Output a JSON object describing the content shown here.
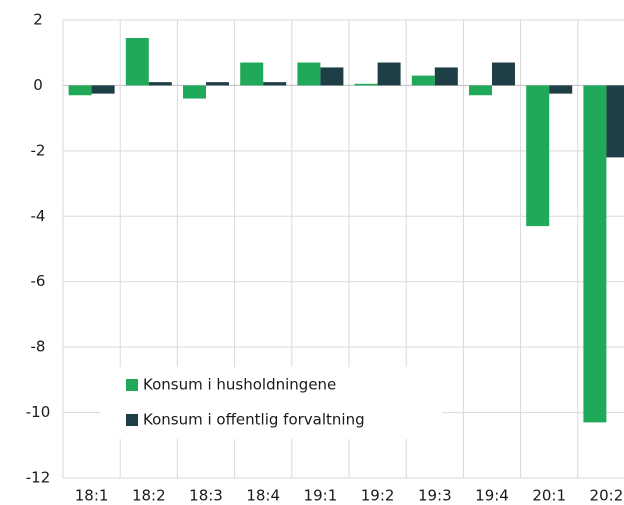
{
  "chart_data": {
    "type": "bar",
    "categories": [
      "18:1",
      "18:2",
      "18:3",
      "18:4",
      "19:1",
      "19:2",
      "19:3",
      "19:4",
      "20:1",
      "20:2"
    ],
    "series": [
      {
        "name": "Konsum i husholdningene",
        "color": "#21a95a",
        "values": [
          -0.3,
          1.45,
          -0.4,
          0.7,
          0.7,
          0.05,
          0.3,
          -0.3,
          -4.3,
          -10.3
        ]
      },
      {
        "name": "Konsum i offentlig forvaltning",
        "color": "#1d3f45",
        "values": [
          -0.25,
          0.1,
          0.1,
          0.1,
          0.55,
          0.7,
          0.55,
          0.7,
          -0.25,
          -2.2
        ]
      }
    ],
    "ylim": [
      -12,
      2
    ],
    "yticks": [
      -12,
      -10,
      -8,
      -6,
      -4,
      -2,
      0,
      2
    ],
    "grid": true,
    "legend": "lower-left"
  }
}
